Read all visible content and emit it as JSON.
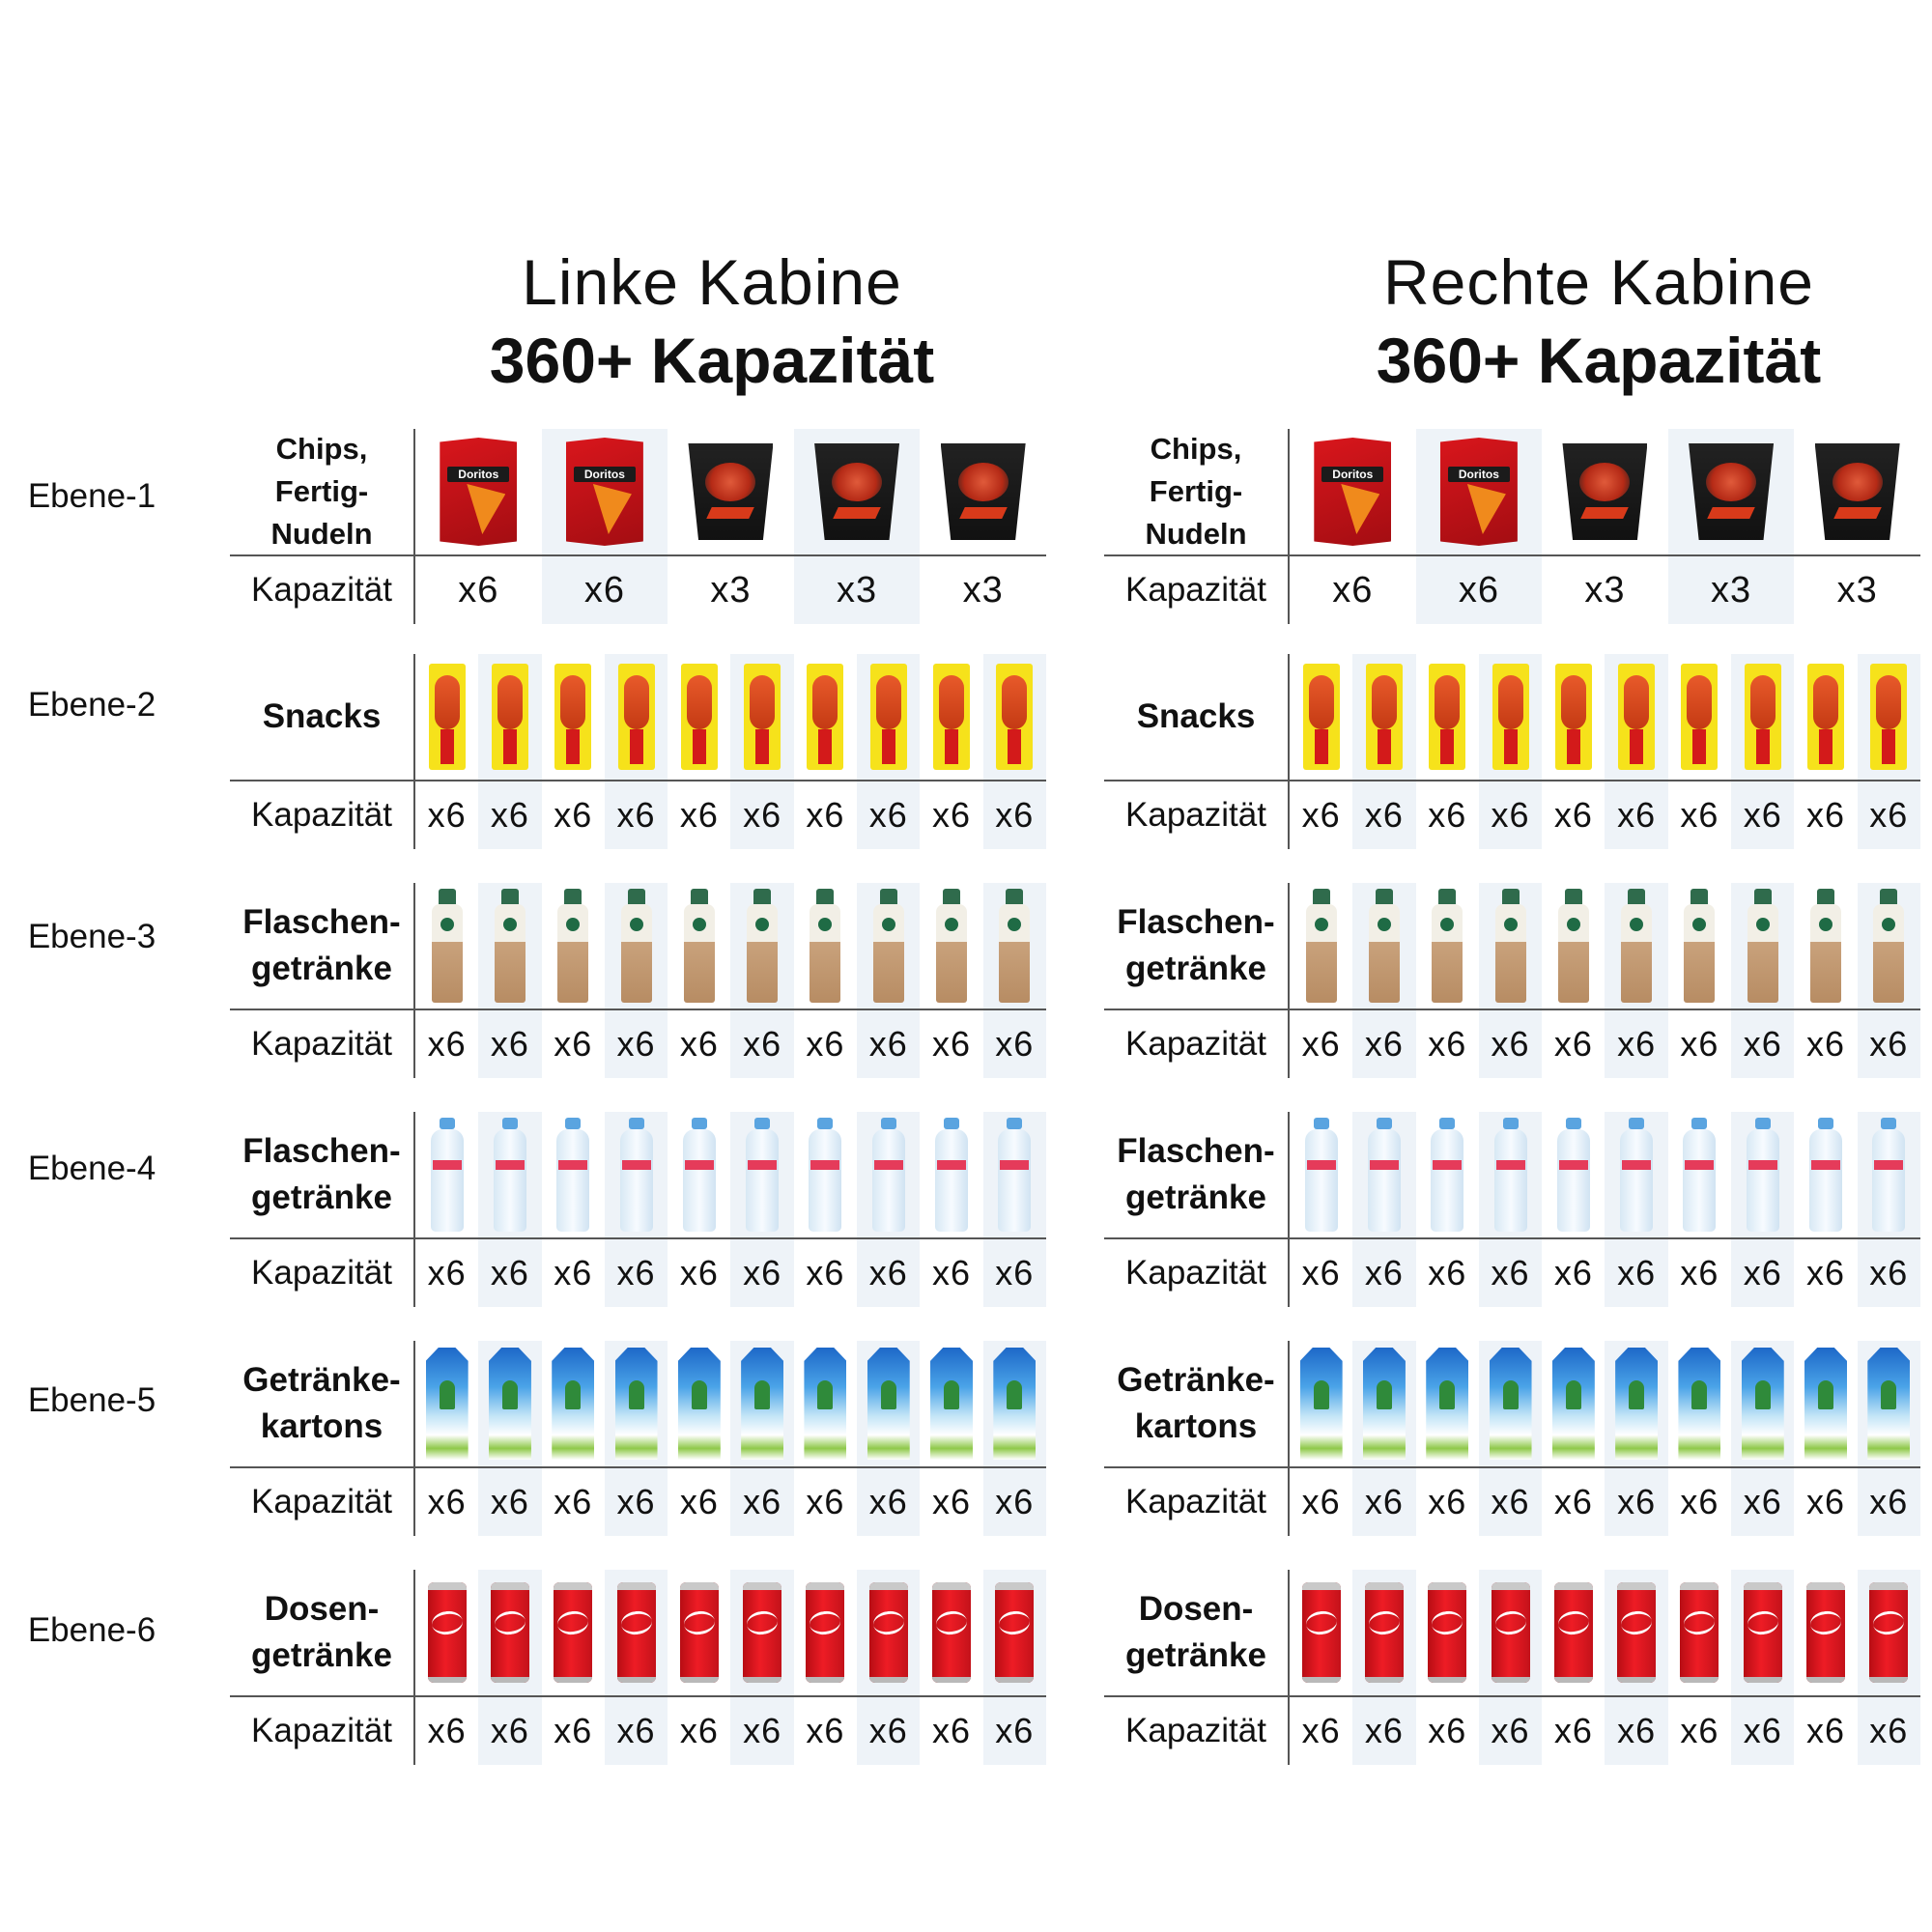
{
  "cabins": {
    "left": {
      "name": "Linke Kabine",
      "capacity": "360+ Kapazität"
    },
    "right": {
      "name": "Rechte Kabine",
      "capacity": "360+ Kapazität"
    }
  },
  "capacity_label": "Kapazität",
  "levels": [
    {
      "label": "Ebene-1",
      "category": "Chips, Fertig-\nNudeln",
      "products": [
        "chips-bag",
        "chips-bag",
        "noodle-cup",
        "noodle-cup",
        "noodle-cup"
      ],
      "quantities": [
        "x6",
        "x6",
        "x3",
        "x3",
        "x3"
      ]
    },
    {
      "label": "Ebene-2",
      "category": "Snacks",
      "products": [
        "snack-stick",
        "snack-stick",
        "snack-stick",
        "snack-stick",
        "snack-stick",
        "snack-stick",
        "snack-stick",
        "snack-stick",
        "snack-stick",
        "snack-stick"
      ],
      "quantities": [
        "x6",
        "x6",
        "x6",
        "x6",
        "x6",
        "x6",
        "x6",
        "x6",
        "x6",
        "x6"
      ]
    },
    {
      "label": "Ebene-3",
      "category": "Flaschen-\ngetränke",
      "products": [
        "coffee-bottle",
        "coffee-bottle",
        "coffee-bottle",
        "coffee-bottle",
        "coffee-bottle",
        "coffee-bottle",
        "coffee-bottle",
        "coffee-bottle",
        "coffee-bottle",
        "coffee-bottle"
      ],
      "quantities": [
        "x6",
        "x6",
        "x6",
        "x6",
        "x6",
        "x6",
        "x6",
        "x6",
        "x6",
        "x6"
      ]
    },
    {
      "label": "Ebene-4",
      "category": "Flaschen-\ngetränke",
      "products": [
        "water-bottle",
        "water-bottle",
        "water-bottle",
        "water-bottle",
        "water-bottle",
        "water-bottle",
        "water-bottle",
        "water-bottle",
        "water-bottle",
        "water-bottle"
      ],
      "quantities": [
        "x6",
        "x6",
        "x6",
        "x6",
        "x6",
        "x6",
        "x6",
        "x6",
        "x6",
        "x6"
      ]
    },
    {
      "label": "Ebene-5",
      "category": "Getränke-\nkartons",
      "products": [
        "drink-carton",
        "drink-carton",
        "drink-carton",
        "drink-carton",
        "drink-carton",
        "drink-carton",
        "drink-carton",
        "drink-carton",
        "drink-carton",
        "drink-carton"
      ],
      "quantities": [
        "x6",
        "x6",
        "x6",
        "x6",
        "x6",
        "x6",
        "x6",
        "x6",
        "x6",
        "x6"
      ]
    },
    {
      "label": "Ebene-6",
      "category": "Dosen-\ngetränke",
      "products": [
        "soda-can",
        "soda-can",
        "soda-can",
        "soda-can",
        "soda-can",
        "soda-can",
        "soda-can",
        "soda-can",
        "soda-can",
        "soda-can"
      ],
      "quantities": [
        "x6",
        "x6",
        "x6",
        "x6",
        "x6",
        "x6",
        "x6",
        "x6",
        "x6",
        "x6"
      ]
    }
  ],
  "chips_logo_text": "Doritos"
}
